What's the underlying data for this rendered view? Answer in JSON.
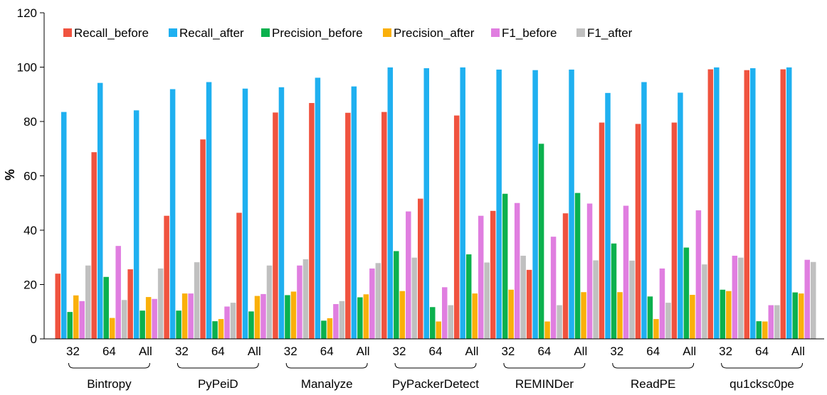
{
  "chart_data": {
    "type": "bar",
    "ylabel": "%",
    "ylim": [
      0,
      120
    ],
    "yticks": [
      0,
      20,
      40,
      60,
      80,
      100,
      120
    ],
    "grid": false,
    "legend_position": "top-left",
    "groups": [
      {
        "name": "Bintropy",
        "subcategories": [
          "32",
          "64",
          "All"
        ]
      },
      {
        "name": "PyPeiD",
        "subcategories": [
          "32",
          "64",
          "All"
        ]
      },
      {
        "name": "Manalyze",
        "subcategories": [
          "32",
          "64",
          "All"
        ]
      },
      {
        "name": "PyPackerDetect",
        "subcategories": [
          "32",
          "64",
          "All"
        ]
      },
      {
        "name": "REMINDer",
        "subcategories": [
          "32",
          "64",
          "All"
        ]
      },
      {
        "name": "ReadPE",
        "subcategories": [
          "32",
          "64",
          "All"
        ]
      },
      {
        "name": "qu1cksc0pe",
        "subcategories": [
          "32",
          "64",
          "All"
        ]
      }
    ],
    "series": [
      {
        "name": "Recall_before",
        "color": "#f0533f",
        "values": [
          24,
          68.7,
          25.6,
          45.3,
          73.4,
          46.4,
          83.3,
          86.8,
          83.2,
          83.5,
          51.6,
          82.2,
          47.1,
          25.4,
          46.2,
          79.6,
          79.1,
          79.6,
          99.2,
          98.9,
          99.2
        ]
      },
      {
        "name": "Recall_after",
        "color": "#1fb0f0",
        "values": [
          83.5,
          94.2,
          84.1,
          91.9,
          94.5,
          92.1,
          92.6,
          96.1,
          92.9,
          99.9,
          99.6,
          99.9,
          99.1,
          98.9,
          99.1,
          90.5,
          94.5,
          90.6,
          99.9,
          99.6,
          99.9
        ]
      },
      {
        "name": "Precision_before",
        "color": "#0bb14e",
        "values": [
          9.9,
          22.8,
          10.4,
          10.4,
          6.5,
          10.1,
          16.1,
          6.7,
          15.3,
          32.3,
          11.7,
          31.1,
          53.4,
          71.8,
          53.7,
          35.1,
          15.6,
          33.6,
          18.1,
          6.5,
          17.1
        ]
      },
      {
        "name": "Precision_after",
        "color": "#fab00a",
        "values": [
          16,
          7.7,
          15.4,
          16.7,
          7.3,
          15.8,
          17.4,
          7.6,
          16.4,
          17.6,
          6.4,
          16.7,
          18.1,
          6.4,
          17.2,
          17.2,
          7.3,
          16.2,
          17.6,
          6.4,
          16.7
        ]
      },
      {
        "name": "F1_before",
        "color": "#e07ee0",
        "values": [
          13.9,
          34.2,
          14.7,
          16.7,
          11.9,
          16.5,
          27,
          12.8,
          25.9,
          46.9,
          19,
          45.3,
          50,
          37.6,
          49.8,
          49,
          25.9,
          47.3,
          30.6,
          12.4,
          29.1
        ]
      },
      {
        "name": "F1_after",
        "color": "#c0c0c0",
        "values": [
          27,
          14.3,
          25.9,
          28.2,
          13.3,
          27,
          29.3,
          13.9,
          27.9,
          29.9,
          12.4,
          28.1,
          30.6,
          12.4,
          28.9,
          28.8,
          13.3,
          27.4,
          29.9,
          12.4,
          28.3
        ]
      }
    ]
  }
}
